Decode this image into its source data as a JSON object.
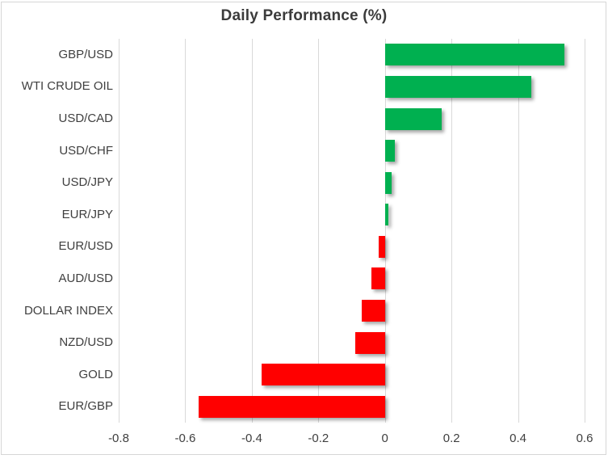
{
  "chart_data": {
    "type": "bar",
    "orientation": "horizontal",
    "title": "Daily Performance (%)",
    "categories": [
      "GBP/USD",
      "WTI CRUDE OIL",
      "USD/CAD",
      "USD/CHF",
      "USD/JPY",
      "EUR/JPY",
      "EUR/USD",
      "AUD/USD",
      "DOLLAR INDEX",
      "NZD/USD",
      "GOLD",
      "EUR/GBP"
    ],
    "values": [
      0.54,
      0.44,
      0.17,
      0.03,
      0.02,
      0.01,
      -0.02,
      -0.04,
      -0.07,
      -0.09,
      -0.37,
      -0.56
    ],
    "xlabel": "",
    "ylabel": "",
    "xlim": [
      -0.8,
      0.663
    ],
    "xticks": [
      -0.8,
      -0.6,
      -0.4,
      -0.2,
      0,
      0.2,
      0.4,
      0.6
    ],
    "xtick_labels": [
      "-0.8",
      "-0.6",
      "-0.4",
      "-0.2",
      "0",
      "0.2",
      "0.4",
      "0.6"
    ],
    "grid": true,
    "legend": false,
    "colors": {
      "positive": "#00B050",
      "negative": "#FF0000",
      "gridline": "#D9D9D9",
      "text": "#3F3F3F",
      "border": "#D6D6D6"
    }
  }
}
